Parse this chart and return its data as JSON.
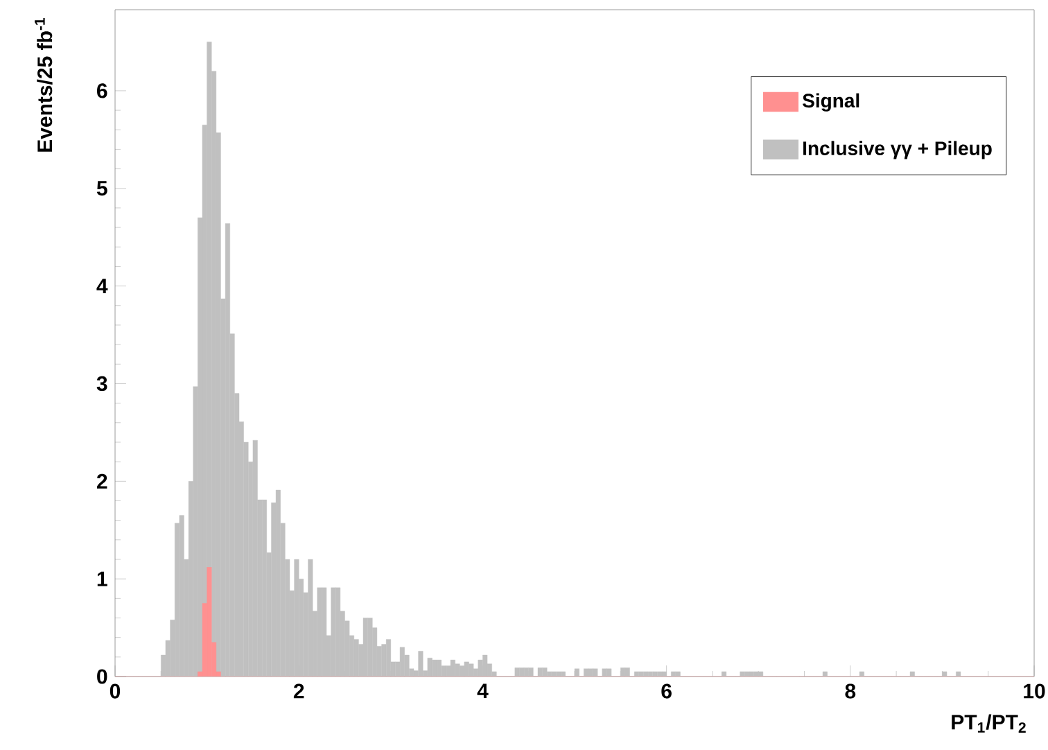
{
  "chart_data": {
    "type": "histogram",
    "xlabel": "PT$_{1}$/PT$_{2}$",
    "ylabel": "Events/25 fb$^{-1}$",
    "xlim": [
      0,
      10
    ],
    "ylim": [
      0,
      6.83
    ],
    "xticks": [
      0,
      2,
      4,
      6,
      8,
      10
    ],
    "yticks": [
      0,
      1,
      2,
      3,
      4,
      5,
      6
    ],
    "legend": "top right",
    "bins": [
      0,
      0.05,
      0.1,
      0.15,
      0.2,
      0.25,
      0.3,
      0.35,
      0.4,
      0.45,
      0.5,
      0.55,
      0.6,
      0.65,
      0.7,
      0.75,
      0.8,
      0.85,
      0.9,
      0.95,
      1,
      1.05,
      1.1,
      1.15,
      1.2,
      1.25,
      1.3,
      1.35,
      1.4,
      1.45,
      1.5,
      1.55,
      1.6,
      1.65,
      1.7,
      1.75,
      1.8,
      1.85,
      1.9,
      1.95,
      2,
      2.05,
      2.1,
      2.15,
      2.2,
      2.25,
      2.3,
      2.35,
      2.4,
      2.45,
      2.5,
      2.55,
      2.6,
      2.65,
      2.7,
      2.75,
      2.8,
      2.85,
      2.9,
      2.95,
      3,
      3.05,
      3.1,
      3.15,
      3.2,
      3.25,
      3.3,
      3.35,
      3.4,
      3.45,
      3.5,
      3.55,
      3.6,
      3.65,
      3.7,
      3.75,
      3.8,
      3.85,
      3.9,
      3.95,
      4,
      4.05,
      4.1,
      4.15,
      4.2,
      4.25,
      4.3,
      4.35,
      4.4,
      4.45,
      4.5,
      4.55,
      4.6,
      4.65,
      4.7,
      4.75,
      4.8,
      4.85,
      4.9,
      4.95,
      5,
      5.05,
      5.1,
      5.15,
      5.2,
      5.25,
      5.3,
      5.35,
      5.4,
      5.45,
      5.5,
      5.55,
      5.6,
      5.65,
      5.7,
      5.75,
      5.8,
      5.85,
      5.9,
      5.95,
      6,
      6.05,
      6.1,
      6.15,
      6.2,
      6.25,
      6.3,
      6.35,
      6.4,
      6.45,
      6.5,
      6.55,
      6.6,
      6.65,
      6.7,
      6.75,
      6.8,
      6.85,
      6.9,
      6.95,
      7,
      7.05,
      7.1,
      7.15,
      7.2,
      7.25,
      7.3,
      7.35,
      7.4,
      7.45,
      7.5,
      7.55,
      7.6,
      7.65,
      7.7,
      7.75,
      7.8,
      7.85,
      7.9,
      7.95,
      8,
      8.05,
      8.1,
      8.15,
      8.2,
      8.25,
      8.3,
      8.35,
      8.4,
      8.45,
      8.5,
      8.55,
      8.6,
      8.65,
      8.7,
      8.75,
      8.8,
      8.85,
      8.9,
      8.95,
      9,
      9.05,
      9.1,
      9.15,
      9.2,
      9.25,
      9.3,
      9.35,
      9.4,
      9.45,
      9.5,
      9.55,
      9.6,
      9.65,
      9.7,
      9.75,
      9.8,
      9.85,
      9.9,
      9.95,
      10
    ],
    "series": [
      {
        "name": "Inclusive γγ + Pileup",
        "color": "#c0c0c0",
        "values": [
          0,
          0,
          0,
          0,
          0,
          0,
          0,
          0,
          0,
          0,
          0.22,
          0.37,
          0.58,
          1.57,
          1.65,
          1.2,
          2.0,
          2.97,
          4.7,
          5.65,
          6.5,
          6.2,
          5.57,
          3.87,
          4.64,
          3.51,
          2.9,
          2.61,
          2.4,
          2.2,
          2.42,
          1.81,
          1.81,
          1.27,
          1.78,
          1.91,
          1.57,
          1.2,
          0.88,
          1.2,
          1.0,
          0.86,
          1.2,
          0.67,
          0.91,
          0.91,
          0.42,
          0.91,
          0.91,
          0.67,
          0.57,
          0.42,
          0.38,
          0.33,
          0.6,
          0.6,
          0.5,
          0.31,
          0.33,
          0.38,
          0.15,
          0.15,
          0.3,
          0.22,
          0.08,
          0.06,
          0.26,
          0.06,
          0.19,
          0.17,
          0.17,
          0.11,
          0.11,
          0.17,
          0.13,
          0.11,
          0.15,
          0.13,
          0.08,
          0.17,
          0.22,
          0.13,
          0.05,
          0,
          0,
          0,
          0,
          0.09,
          0.09,
          0.09,
          0.09,
          0,
          0.09,
          0.09,
          0.05,
          0.05,
          0.05,
          0.05,
          0,
          0,
          0.08,
          0,
          0.08,
          0.08,
          0.08,
          0,
          0.08,
          0.08,
          0,
          0,
          0.09,
          0.09,
          0,
          0.05,
          0.05,
          0.05,
          0.05,
          0.05,
          0.05,
          0.05,
          0,
          0.05,
          0.05,
          0,
          0,
          0,
          0,
          0,
          0,
          0,
          0,
          0,
          0.05,
          0,
          0,
          0,
          0.05,
          0.05,
          0.05,
          0.05,
          0.05,
          0,
          0,
          0,
          0,
          0,
          0,
          0,
          0,
          0,
          0,
          0,
          0,
          0,
          0.05,
          0,
          0,
          0,
          0,
          0,
          0,
          0,
          0.05,
          0,
          0,
          0,
          0,
          0,
          0,
          0,
          0,
          0,
          0,
          0.05,
          0,
          0,
          0,
          0,
          0,
          0,
          0.05,
          0,
          0,
          0.05,
          0,
          0,
          0,
          0,
          0,
          0,
          0,
          0,
          0,
          0,
          0,
          0,
          0,
          0,
          0,
          0
        ]
      },
      {
        "name": "Signal",
        "color": "#ff9090",
        "values": [
          0,
          0,
          0,
          0,
          0,
          0,
          0,
          0,
          0,
          0,
          0,
          0,
          0,
          0,
          0,
          0,
          0,
          0,
          0.05,
          0.75,
          1.12,
          0.35,
          0.05,
          0,
          0,
          0,
          0,
          0,
          0,
          0,
          0,
          0,
          0,
          0,
          0,
          0,
          0,
          0,
          0,
          0,
          0,
          0,
          0,
          0,
          0,
          0,
          0,
          0,
          0,
          0,
          0,
          0,
          0,
          0,
          0,
          0,
          0,
          0,
          0,
          0,
          0,
          0,
          0,
          0,
          0,
          0,
          0,
          0,
          0,
          0,
          0,
          0,
          0,
          0,
          0,
          0,
          0,
          0,
          0,
          0,
          0,
          0,
          0,
          0,
          0,
          0,
          0,
          0,
          0,
          0,
          0,
          0,
          0,
          0,
          0,
          0,
          0,
          0,
          0,
          0,
          0,
          0,
          0,
          0,
          0,
          0,
          0,
          0,
          0,
          0,
          0,
          0,
          0,
          0,
          0,
          0,
          0,
          0,
          0,
          0,
          0,
          0,
          0,
          0,
          0,
          0,
          0,
          0,
          0,
          0,
          0,
          0,
          0,
          0,
          0,
          0,
          0,
          0,
          0,
          0,
          0,
          0,
          0,
          0,
          0,
          0,
          0,
          0,
          0,
          0,
          0,
          0,
          0,
          0,
          0,
          0,
          0,
          0,
          0,
          0,
          0,
          0,
          0,
          0,
          0,
          0,
          0,
          0,
          0,
          0,
          0,
          0,
          0,
          0,
          0,
          0,
          0,
          0,
          0,
          0,
          0,
          0,
          0,
          0,
          0,
          0,
          0,
          0,
          0,
          0,
          0,
          0,
          0,
          0,
          0,
          0,
          0,
          0,
          0,
          0
        ]
      }
    ]
  }
}
